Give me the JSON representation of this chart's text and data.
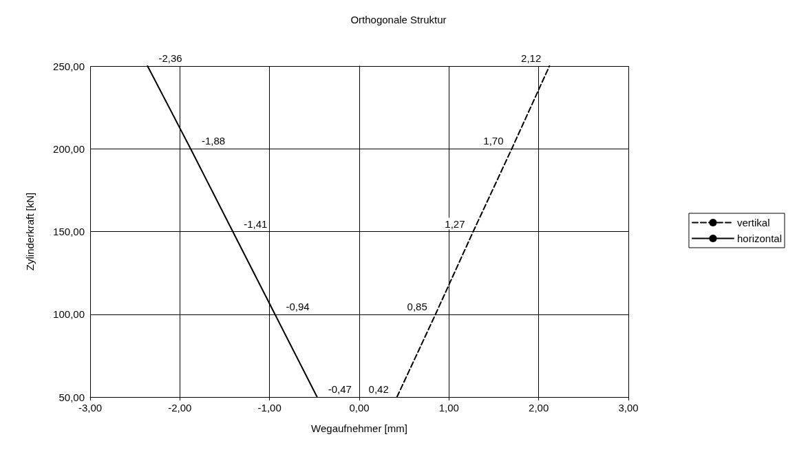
{
  "chart_data": {
    "type": "line",
    "title": "Orthogonale Struktur",
    "xlabel": "Wegaufnehmer [mm]",
    "ylabel": "Zylinderkraft [kN]",
    "xlim": [
      -3,
      3
    ],
    "xticks": [
      {
        "value": -3,
        "label": "-3,00"
      },
      {
        "value": -2,
        "label": "-2,00"
      },
      {
        "value": -1,
        "label": "-1,00"
      },
      {
        "value": 0,
        "label": "0,00"
      },
      {
        "value": 1,
        "label": "1,00"
      },
      {
        "value": 2,
        "label": "2,00"
      },
      {
        "value": 3,
        "label": "3,00"
      }
    ],
    "ylim": [
      50,
      250
    ],
    "yticks": [
      {
        "value": 50,
        "label": "50,00"
      },
      {
        "value": 100,
        "label": "100,00"
      },
      {
        "value": 150,
        "label": "150,00"
      },
      {
        "value": 200,
        "label": "200,00"
      },
      {
        "value": 250,
        "label": "250,00"
      }
    ],
    "grid": true,
    "legend": "right",
    "marker": "none",
    "series": [
      {
        "name": "vertikal",
        "color": "#000000",
        "line_style": "dashed",
        "x": [
          0.42,
          0.85,
          1.27,
          1.7,
          2.12
        ],
        "values": [
          50,
          100,
          150,
          200,
          250
        ]
      },
      {
        "name": "horizontal",
        "color": "#000000",
        "line_style": "solid",
        "x": [
          -0.47,
          -0.94,
          -1.41,
          -1.88,
          -2.36
        ],
        "values": [
          50,
          100,
          150,
          200,
          250
        ]
      }
    ],
    "annotations": [
      {
        "text": "0,42",
        "x": 0.42,
        "y": 50
      },
      {
        "text": "0,85",
        "x": 0.85,
        "y": 100
      },
      {
        "text": "1,27",
        "x": 1.27,
        "y": 150
      },
      {
        "text": "1,70",
        "x": 1.7,
        "y": 200
      },
      {
        "text": "2,12",
        "x": 2.12,
        "y": 250
      },
      {
        "text": "-0,47",
        "x": -0.47,
        "y": 50
      },
      {
        "text": "-0,94",
        "x": -0.94,
        "y": 100
      },
      {
        "text": "-1,41",
        "x": -1.41,
        "y": 150
      },
      {
        "text": "-1,88",
        "x": -1.88,
        "y": 200
      },
      {
        "text": "-2,36",
        "x": -2.36,
        "y": 250
      }
    ]
  }
}
